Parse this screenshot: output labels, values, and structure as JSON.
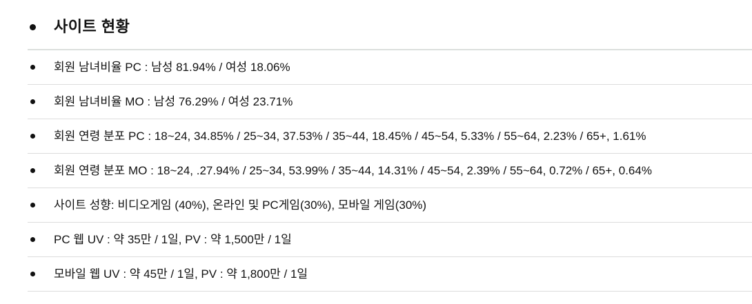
{
  "document": {
    "title": "사이트 현황",
    "items": [
      "회원 남녀비율 PC : 남성 81.94% / 여성 18.06%",
      "회원 남녀비율 MO : 남성 76.29% / 여성 23.71%",
      "회원 연령 분포 PC : 18~24, 34.85% / 25~34, 37.53% / 35~44, 18.45% / 45~54, 5.33% / 55~64, 2.23% / 65+, 1.61%",
      "회원 연령 분포 MO : 18~24, .27.94% / 25~34, 53.99% / 35~44, 14.31% / 45~54, 2.39% / 55~64, 0.72% / 65+, 0.64%",
      "사이트 성향: 비디오게임 (40%), 온라인 및 PC게임(30%), 모바일 게임(30%)",
      "PC 웹 UV : 약 35만 / 1일, PV : 약 1,500만 / 1일",
      "모바일 웹 UV : 약 45만 / 1일, PV : 약 1,800만 / 1일"
    ],
    "colors": {
      "text": "#111111",
      "heading_divider": "#dbdfdd",
      "row_divider": "#dcdcdc"
    }
  }
}
